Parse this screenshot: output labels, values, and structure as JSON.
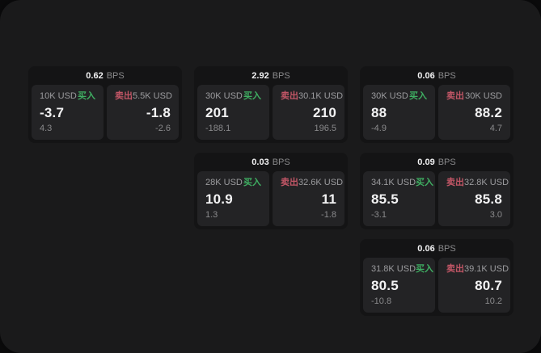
{
  "labels": {
    "bps": "BPS",
    "buy": "买入",
    "sell": "卖出"
  },
  "colors": {
    "outer_bg": "#0c0c0d",
    "window_bg": "#1a1a1b",
    "card_bg": "#141415",
    "panel_bg": "#232325",
    "buy_green": "#3fae62",
    "sell_red": "#c25666"
  },
  "cards": [
    {
      "bps": "0.62",
      "grid": {
        "row": 1,
        "col": 1
      },
      "buy": {
        "amount": "10K USD",
        "value": "-3.7",
        "sub": "4.3"
      },
      "sell": {
        "amount": "5.5K USD",
        "value": "-1.8",
        "sub": "-2.6"
      }
    },
    {
      "bps": "2.92",
      "grid": {
        "row": 1,
        "col": 2
      },
      "buy": {
        "amount": "30K USD",
        "value": "201",
        "sub": "-188.1"
      },
      "sell": {
        "amount": "30.1K USD",
        "value": "210",
        "sub": "196.5"
      }
    },
    {
      "bps": "0.06",
      "grid": {
        "row": 1,
        "col": 3
      },
      "buy": {
        "amount": "30K USD",
        "value": "88",
        "sub": "-4.9"
      },
      "sell": {
        "amount": "30K USD",
        "value": "88.2",
        "sub": "4.7"
      }
    },
    {
      "bps": "0.03",
      "grid": {
        "row": 2,
        "col": 2
      },
      "buy": {
        "amount": "28K USD",
        "value": "10.9",
        "sub": "1.3"
      },
      "sell": {
        "amount": "32.6K USD",
        "value": "11",
        "sub": "-1.8"
      }
    },
    {
      "bps": "0.09",
      "grid": {
        "row": 2,
        "col": 3
      },
      "buy": {
        "amount": "34.1K USD",
        "value": "85.5",
        "sub": "-3.1"
      },
      "sell": {
        "amount": "32.8K USD",
        "value": "85.8",
        "sub": "3.0"
      }
    },
    {
      "bps": "0.06",
      "grid": {
        "row": 3,
        "col": 3
      },
      "buy": {
        "amount": "31.8K USD",
        "value": "80.5",
        "sub": "-10.8"
      },
      "sell": {
        "amount": "39.1K USD",
        "value": "80.7",
        "sub": "10.2"
      }
    }
  ]
}
